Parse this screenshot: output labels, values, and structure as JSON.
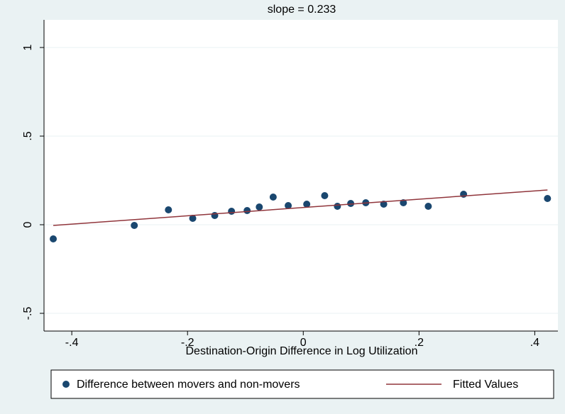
{
  "chart_data": {
    "type": "scatter",
    "title": "slope = 0.233",
    "x_label": "Destination-Origin Difference in Log Utilization",
    "xlim": [
      -0.448,
      0.44
    ],
    "xticks": [
      {
        "value": -0.4,
        "label": "-.4"
      },
      {
        "value": -0.2,
        "label": "-.2"
      },
      0,
      {
        "value": 0.2,
        "label": ".2"
      },
      {
        "value": 0.4,
        "label": ".4"
      }
    ],
    "ylim": [
      -0.6,
      1.156
    ],
    "yticks": [
      {
        "value": -0.5,
        "label": "-.5"
      },
      0,
      {
        "value": 0.5,
        "label": ".5"
      },
      1
    ],
    "grid": true,
    "series": [
      {
        "name": "Difference between movers and non-movers",
        "type": "scatter",
        "color": "#1a476f",
        "x": [
          -0.432,
          -0.292,
          -0.233,
          -0.191,
          -0.153,
          -0.124,
          -0.097,
          -0.076,
          -0.052,
          -0.026,
          0.006,
          0.037,
          0.059,
          0.082,
          0.108,
          0.139,
          0.173,
          0.216,
          0.277,
          0.422
        ],
        "values": [
          -0.08,
          -0.004,
          0.084,
          0.036,
          0.052,
          0.076,
          0.08,
          0.1,
          0.156,
          0.108,
          0.116,
          0.164,
          0.104,
          0.12,
          0.124,
          0.116,
          0.124,
          0.104,
          0.172,
          0.148
        ]
      },
      {
        "name": "Fitted Values",
        "type": "line",
        "color": "#90353b",
        "x": [
          -0.432,
          0.422
        ],
        "values": [
          -0.004,
          0.196
        ]
      }
    ]
  }
}
